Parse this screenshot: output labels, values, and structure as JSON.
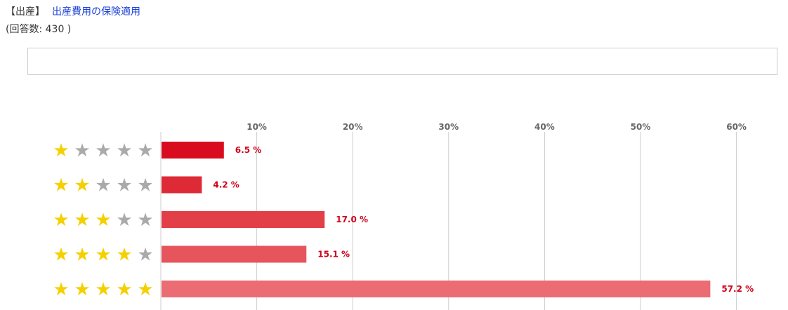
{
  "header": {
    "category": "【出産】",
    "title": "出産費用の保険適用",
    "respondents": "(回答数: 430 )"
  },
  "colors": {
    "link": "#1a3fd6",
    "star_filled": "#f5d000",
    "star_empty": "#aaaaaa",
    "grid": "#cccccc",
    "label": "#d0021b"
  },
  "chart_data": {
    "type": "bar",
    "orientation": "horizontal",
    "categories": [
      "1 star",
      "2 stars",
      "3 stars",
      "4 stars",
      "5 stars"
    ],
    "category_stars": [
      1,
      2,
      3,
      4,
      5
    ],
    "max_stars": 5,
    "values": [
      6.5,
      4.2,
      17.0,
      15.1,
      57.2
    ],
    "value_labels": [
      "6.5 %",
      "4.2 %",
      "17.0 %",
      "15.1 %",
      "57.2 %"
    ],
    "bar_colors": [
      "#d80c1e",
      "#de2a36",
      "#e33f49",
      "#e6545c",
      "#eb6c72"
    ],
    "x_ticks": [
      10,
      20,
      30,
      40,
      50,
      60
    ],
    "x_tick_labels": [
      "10%",
      "20%",
      "30%",
      "40%",
      "50%",
      "60%"
    ],
    "xlim": [
      0,
      60
    ],
    "grid": true,
    "axis_position": "top"
  }
}
